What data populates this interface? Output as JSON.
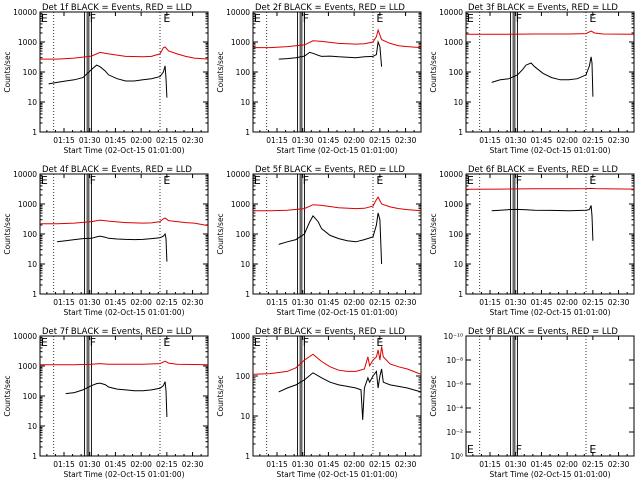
{
  "colors": {
    "events": "#000000",
    "lld": "#dd0000",
    "frame": "#000000",
    "background": "#ffffff"
  },
  "shared": {
    "ylabel": "Counts/sec",
    "xlabel": "Start Time (02-Oct-15 01:01:00)",
    "x_ticks": [
      "01:15",
      "01:30",
      "01:45",
      "02:00",
      "02:15",
      "02:30"
    ],
    "x_tick_minutes": [
      14,
      29,
      44,
      59,
      74,
      89
    ],
    "x_range_minutes": [
      0,
      98
    ],
    "dotted_lines_minutes": [
      8,
      70,
      98
    ],
    "band_minutes": [
      [
        26,
        30
      ],
      [
        27.5,
        28.5
      ]
    ],
    "markers": [
      {
        "label": "E",
        "minute": 0.5,
        "pos": "top"
      },
      {
        "label": "F",
        "minute": 29,
        "pos": "top"
      },
      {
        "label": "E",
        "minute": 72,
        "pos": "top"
      }
    ],
    "log_ticks": [
      "1",
      "10",
      "100",
      "1000",
      "10000"
    ]
  },
  "chart_data": [
    {
      "type": "line",
      "title": "Det 1f BLACK = Events, RED = LLD",
      "yscale": "log",
      "ylim": [
        1,
        10000
      ],
      "series": [
        {
          "name": "RED",
          "x": [
            0,
            10,
            20,
            30,
            35,
            40,
            50,
            60,
            65,
            70,
            72,
            73,
            75,
            80,
            85,
            90,
            98
          ],
          "y": [
            270,
            270,
            290,
            340,
            450,
            400,
            330,
            320,
            330,
            400,
            650,
            680,
            500,
            400,
            330,
            290,
            270
          ]
        },
        {
          "name": "BLACK",
          "x": [
            5,
            10,
            15,
            20,
            25,
            30,
            33,
            35,
            38,
            40,
            45,
            50,
            55,
            60,
            65,
            70,
            72,
            73,
            73.5,
            74
          ],
          "y": [
            40,
            45,
            50,
            55,
            65,
            120,
            170,
            150,
            110,
            80,
            60,
            50,
            50,
            55,
            60,
            70,
            100,
            160,
            60,
            14
          ]
        }
      ]
    },
    {
      "type": "line",
      "title": "Det 2f BLACK = Events, RED = LLD",
      "yscale": "log",
      "ylim": [
        1,
        10000
      ],
      "series": [
        {
          "name": "RED",
          "x": [
            0,
            10,
            20,
            30,
            35,
            40,
            50,
            60,
            65,
            70,
            72,
            73,
            75,
            80,
            85,
            90,
            98
          ],
          "y": [
            650,
            650,
            700,
            800,
            1100,
            1050,
            900,
            850,
            880,
            1000,
            1500,
            2500,
            1200,
            900,
            750,
            700,
            650
          ]
        },
        {
          "name": "BLACK",
          "x": [
            15,
            20,
            25,
            30,
            33,
            35,
            38,
            40,
            45,
            50,
            55,
            60,
            65,
            70,
            72,
            73,
            74,
            75
          ],
          "y": [
            270,
            280,
            300,
            340,
            450,
            420,
            360,
            330,
            340,
            320,
            310,
            300,
            320,
            330,
            380,
            1000,
            700,
            150
          ]
        }
      ]
    },
    {
      "type": "line",
      "title": "Det 3f BLACK = Events, RED = LLD",
      "yscale": "log",
      "ylim": [
        1,
        10000
      ],
      "series": [
        {
          "name": "RED",
          "x": [
            0,
            20,
            40,
            60,
            70,
            73,
            75,
            80,
            98
          ],
          "y": [
            1800,
            1800,
            1850,
            1850,
            1900,
            2300,
            2000,
            1850,
            1800
          ]
        },
        {
          "name": "BLACK",
          "x": [
            15,
            20,
            25,
            30,
            33,
            35,
            38,
            40,
            45,
            50,
            55,
            60,
            65,
            70,
            72,
            73,
            73.5,
            74
          ],
          "y": [
            45,
            55,
            60,
            80,
            120,
            170,
            200,
            150,
            90,
            65,
            55,
            55,
            60,
            80,
            160,
            320,
            200,
            15
          ]
        }
      ]
    },
    {
      "type": "line",
      "title": "Det 4f BLACK = Events, RED = LLD",
      "yscale": "log",
      "ylim": [
        1,
        10000
      ],
      "series": [
        {
          "name": "RED",
          "x": [
            0,
            10,
            20,
            30,
            35,
            40,
            50,
            60,
            65,
            70,
            72,
            73,
            75,
            80,
            85,
            90,
            98
          ],
          "y": [
            220,
            220,
            230,
            260,
            290,
            270,
            240,
            230,
            235,
            260,
            320,
            340,
            280,
            260,
            240,
            230,
            190
          ]
        },
        {
          "name": "BLACK",
          "x": [
            10,
            15,
            20,
            25,
            30,
            33,
            35,
            38,
            40,
            45,
            50,
            55,
            60,
            65,
            70,
            72,
            73,
            73.5,
            74
          ],
          "y": [
            55,
            60,
            65,
            70,
            72,
            80,
            85,
            78,
            72,
            68,
            66,
            65,
            66,
            70,
            75,
            85,
            100,
            70,
            12
          ]
        }
      ]
    },
    {
      "type": "line",
      "title": "Det 5f BLACK = Events, RED = LLD",
      "yscale": "log",
      "ylim": [
        1,
        10000
      ],
      "series": [
        {
          "name": "RED",
          "x": [
            0,
            10,
            20,
            30,
            35,
            40,
            50,
            60,
            65,
            70,
            72,
            73,
            75,
            80,
            85,
            90,
            98
          ],
          "y": [
            600,
            600,
            620,
            700,
            950,
            900,
            750,
            700,
            720,
            850,
            1400,
            1700,
            1000,
            800,
            700,
            650,
            600
          ]
        },
        {
          "name": "BLACK",
          "x": [
            15,
            20,
            25,
            30,
            33,
            35,
            38,
            40,
            45,
            50,
            55,
            60,
            65,
            70,
            72,
            73,
            74,
            75
          ],
          "y": [
            45,
            55,
            65,
            100,
            250,
            400,
            260,
            150,
            90,
            70,
            60,
            55,
            65,
            80,
            200,
            500,
            300,
            10
          ]
        }
      ]
    },
    {
      "type": "line",
      "title": "Det 6f BLACK = Events, RED = LLD",
      "yscale": "log",
      "ylim": [
        1,
        10000
      ],
      "series": [
        {
          "name": "RED",
          "x": [
            0,
            20,
            40,
            60,
            70,
            73,
            75,
            80,
            98
          ],
          "y": [
            3100,
            3150,
            3200,
            3200,
            3250,
            3300,
            3250,
            3200,
            3150
          ]
        },
        {
          "name": "BLACK",
          "x": [
            15,
            20,
            25,
            30,
            35,
            40,
            50,
            60,
            70,
            72,
            73,
            73.5,
            74
          ],
          "y": [
            600,
            620,
            650,
            660,
            640,
            620,
            610,
            600,
            620,
            650,
            900,
            400,
            60
          ]
        }
      ]
    },
    {
      "type": "line",
      "title": "Det 7f BLACK = Events, RED = LLD",
      "yscale": "log",
      "ylim": [
        1,
        10000
      ],
      "series": [
        {
          "name": "RED",
          "x": [
            0,
            20,
            30,
            35,
            40,
            60,
            70,
            73,
            75,
            80,
            98
          ],
          "y": [
            1100,
            1100,
            1150,
            1200,
            1150,
            1150,
            1200,
            1450,
            1250,
            1150,
            1100
          ]
        },
        {
          "name": "BLACK",
          "x": [
            15,
            20,
            25,
            30,
            33,
            35,
            38,
            40,
            45,
            50,
            55,
            60,
            65,
            70,
            72,
            73,
            73.5,
            74
          ],
          "y": [
            120,
            130,
            160,
            220,
            260,
            270,
            240,
            200,
            170,
            160,
            150,
            150,
            160,
            180,
            220,
            300,
            150,
            20
          ]
        }
      ]
    },
    {
      "type": "line",
      "title": "Det 8f BLACK = Events, RED = LLD",
      "yscale": "log",
      "ylim": [
        1,
        1000
      ],
      "series": [
        {
          "name": "RED",
          "x": [
            0,
            10,
            20,
            25,
            30,
            35,
            40,
            45,
            50,
            55,
            60,
            65,
            67,
            68,
            70,
            72,
            73,
            74,
            75,
            76,
            80,
            85,
            90,
            98
          ],
          "y": [
            110,
            115,
            130,
            160,
            250,
            350,
            230,
            170,
            140,
            130,
            130,
            150,
            300,
            180,
            250,
            300,
            450,
            250,
            550,
            300,
            200,
            170,
            150,
            110
          ]
        },
        {
          "name": "BLACK",
          "x": [
            15,
            20,
            25,
            30,
            35,
            40,
            45,
            50,
            55,
            60,
            63,
            64,
            65,
            67,
            68,
            70,
            72,
            73,
            74,
            75,
            76,
            80,
            85,
            90,
            98
          ],
          "y": [
            40,
            50,
            60,
            80,
            120,
            90,
            70,
            60,
            55,
            50,
            45,
            8,
            50,
            90,
            70,
            100,
            130,
            50,
            100,
            150,
            70,
            60,
            55,
            50,
            40
          ]
        }
      ]
    },
    {
      "type": "line",
      "title": "Det 9f BLACK = Events, RED = LLD",
      "yscale": "log",
      "ylim": [
        1,
        1e-10
      ],
      "tick_labels_y": [
        "10⁰",
        "10⁻²",
        "10⁻⁴",
        "10⁻⁶",
        "10⁻⁸",
        "10⁻¹⁰"
      ],
      "marker_pos": "bottom",
      "series": []
    }
  ]
}
